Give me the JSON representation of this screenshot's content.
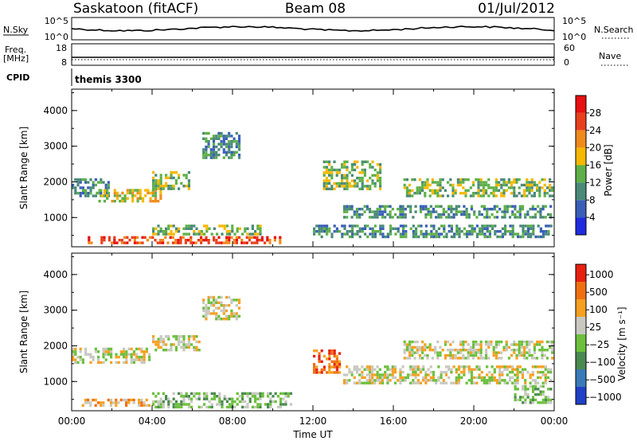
{
  "header": {
    "station": "Saskatoon (fitACF)",
    "beam": "Beam 08",
    "date": "01/Jul/2012"
  },
  "noise_panel": {
    "left_label": "N.Sky",
    "right_label": "N.Search",
    "left_ticks": [
      "10^5",
      "10^0"
    ],
    "right_ticks": [
      "10^5",
      "10^0"
    ]
  },
  "freq_panel": {
    "left_label_top": "Freq.",
    "left_label_bottom": "[MHz]",
    "right_label": "Nave",
    "left_ticks": [
      "18",
      "8"
    ],
    "right_ticks": [
      "60",
      "0"
    ]
  },
  "cpid_panel": {
    "label": "CPID",
    "program": "themis 3300"
  },
  "chart_data": [
    {
      "type": "heatmap",
      "name": "power",
      "ylabel": "Slant Range [km]",
      "ylim": [
        180,
        4600
      ],
      "yticks": [
        "1000",
        "2000",
        "3000",
        "4000"
      ],
      "colorbar": {
        "label": "Power [dB]",
        "range": [
          0,
          32
        ],
        "ticks": [
          "4",
          "8",
          "12",
          "16",
          "20",
          "24",
          "28"
        ],
        "colors": [
          "#1f2ce0",
          "#3a5fb8",
          "#4a8a78",
          "#5fb049",
          "#f6b800",
          "#f08a1c",
          "#e8401c",
          "#e81010"
        ]
      },
      "echo_regions": [
        {
          "t0": 0.0,
          "t1": 2.0,
          "r0": 1550,
          "r1": 2100,
          "level": 2
        },
        {
          "t0": 1.2,
          "t1": 4.5,
          "r0": 1350,
          "r1": 1800,
          "level": 4
        },
        {
          "t0": 4.0,
          "t1": 6.0,
          "r0": 1750,
          "r1": 2300,
          "level": 3
        },
        {
          "t0": 6.5,
          "t1": 8.5,
          "r0": 2600,
          "r1": 3400,
          "level": 2
        },
        {
          "t0": 0.8,
          "t1": 10.5,
          "r0": 220,
          "r1": 480,
          "level": 6
        },
        {
          "t0": 4.0,
          "t1": 9.5,
          "r0": 480,
          "r1": 800,
          "level": 3
        },
        {
          "t0": 12.5,
          "t1": 15.5,
          "r0": 1700,
          "r1": 2600,
          "level": 3
        },
        {
          "t0": 13.5,
          "t1": 24.0,
          "r0": 950,
          "r1": 1350,
          "level": 2
        },
        {
          "t0": 16.5,
          "t1": 24.0,
          "r0": 1500,
          "r1": 2100,
          "level": 3
        },
        {
          "t0": 12.0,
          "t1": 24.0,
          "r0": 350,
          "r1": 800,
          "level": 2
        }
      ]
    },
    {
      "type": "heatmap",
      "name": "velocity",
      "ylabel": "Slant Range [km]",
      "ylim": [
        180,
        4600
      ],
      "yticks": [
        "1000",
        "2000",
        "3000",
        "4000"
      ],
      "xlabel": "Time UT",
      "xticks": [
        "00:00",
        "04:00",
        "08:00",
        "12:00",
        "16:00",
        "20:00",
        "00:00"
      ],
      "colorbar": {
        "label": "Velocity [m s⁻¹]",
        "ticks": [
          "1000",
          "500",
          "100",
          "25",
          "−25",
          "−100",
          "−500",
          "−1000"
        ],
        "colors": [
          "#2040c8",
          "#3a7ab8",
          "#4a8a50",
          "#6cc03c",
          "#c8c8c0",
          "#f6a020",
          "#f07010",
          "#e82010"
        ]
      },
      "echo_regions": [
        {
          "t0": 0.0,
          "t1": 4.0,
          "r0": 1450,
          "r1": 1950,
          "level": 4
        },
        {
          "t0": 4.0,
          "t1": 6.5,
          "r0": 1800,
          "r1": 2300,
          "level": 4
        },
        {
          "t0": 6.5,
          "t1": 8.5,
          "r0": 2700,
          "r1": 3400,
          "level": 4
        },
        {
          "t0": 0.5,
          "t1": 4.0,
          "r0": 220,
          "r1": 520,
          "level": 5
        },
        {
          "t0": 4.0,
          "t1": 11.0,
          "r0": 220,
          "r1": 700,
          "level": 3
        },
        {
          "t0": 12.0,
          "t1": 13.5,
          "r0": 1200,
          "r1": 1900,
          "level": 6
        },
        {
          "t0": 13.5,
          "t1": 24.0,
          "r0": 900,
          "r1": 1450,
          "level": 4
        },
        {
          "t0": 16.5,
          "t1": 24.0,
          "r0": 1550,
          "r1": 2150,
          "level": 4
        },
        {
          "t0": 22.0,
          "t1": 24.0,
          "r0": 300,
          "r1": 900,
          "level": 3
        }
      ]
    }
  ]
}
